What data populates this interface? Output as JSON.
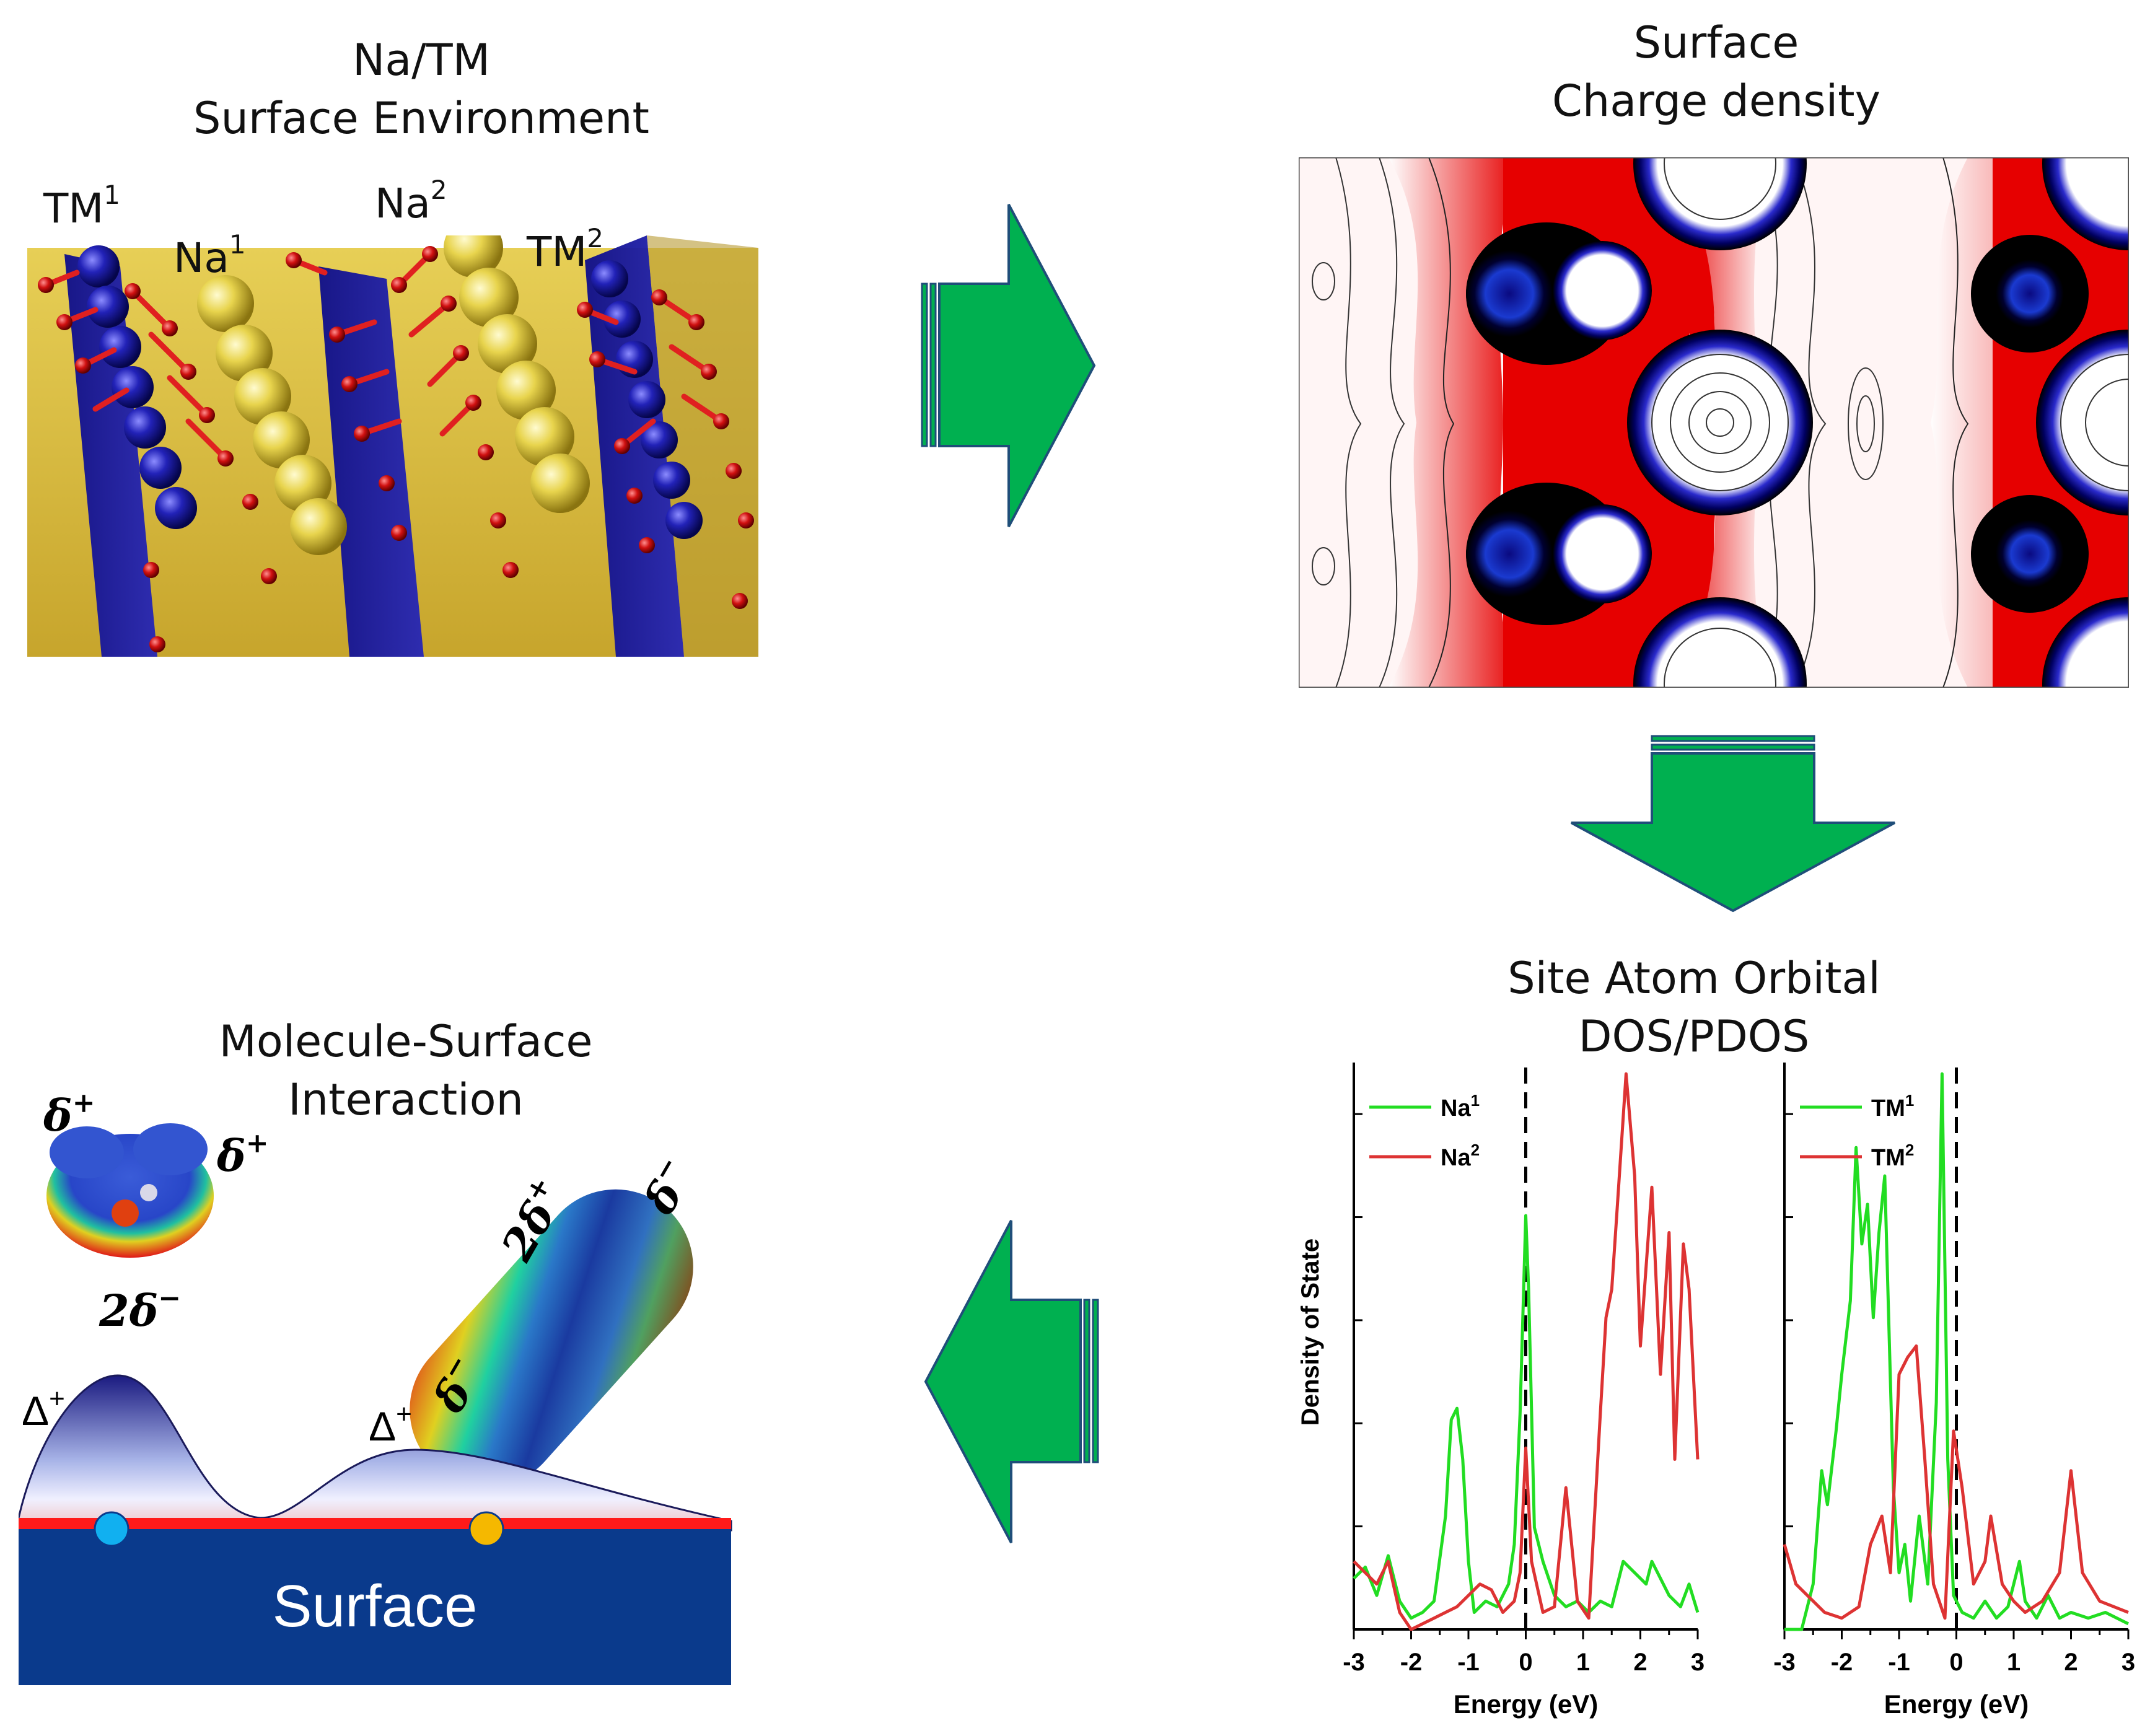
{
  "panels": {
    "surface_env": {
      "title_line1": "Na/TM",
      "title_line2": "Surface Environment"
    },
    "charge_density": {
      "title_line1": "Surface",
      "title_line2": "Charge density"
    },
    "dos": {
      "title_line1": "Site Atom Orbital",
      "title_line2": "DOS/PDOS"
    },
    "interaction": {
      "title_line1": "Molecule-Surface",
      "title_line2": "Interaction"
    }
  },
  "atom_labels": {
    "tm1_base": "TM",
    "tm1_sup": "1",
    "na1_base": "Na",
    "na1_sup": "1",
    "na2_base": "Na",
    "na2_sup": "2",
    "tm2_base": "TM",
    "tm2_sup": "2"
  },
  "interaction": {
    "delta_plus": "δ",
    "sup_plus": "+",
    "sup_minus": "−",
    "two_delta_minus": "2δ",
    "two_delta_plus": "2δ",
    "delta_minus": "δ",
    "cap_delta": "Δ",
    "surface_label": "Surface"
  },
  "colors": {
    "arrow_green": "#00b050",
    "arrow_outline": "#1f4e79",
    "na_line": "#22dd22",
    "tm_line": "#dd3333",
    "tm_atom": "#1a1aa6",
    "na_atom": "#e8d44d",
    "oxygen": "#d01010",
    "surface_blue": "#0a3a8c"
  },
  "chart_data": [
    {
      "type": "line",
      "title": "",
      "xlabel": "Energy (eV)",
      "ylabel": "Density of State",
      "xlim": [
        -3,
        3
      ],
      "ylim": [
        0,
        1
      ],
      "x_ticks": [
        "-3",
        "-2",
        "-1",
        "0",
        "1",
        "2",
        "3"
      ],
      "legend_position": "top-left",
      "fermi_line_x": 0,
      "series": [
        {
          "name": "Na",
          "name_sup": "1",
          "color": "#22dd22",
          "x": [
            -3,
            -2.8,
            -2.6,
            -2.4,
            -2.2,
            -2.0,
            -1.8,
            -1.6,
            -1.4,
            -1.3,
            -1.2,
            -1.1,
            -1.0,
            -0.9,
            -0.7,
            -0.5,
            -0.3,
            -0.2,
            -0.1,
            0.0,
            0.05,
            0.15,
            0.3,
            0.5,
            0.7,
            0.9,
            1.1,
            1.3,
            1.5,
            1.7,
            1.9,
            2.1,
            2.2,
            2.3,
            2.5,
            2.7,
            2.85,
            3.0
          ],
          "y": [
            0.09,
            0.11,
            0.06,
            0.13,
            0.05,
            0.02,
            0.03,
            0.05,
            0.2,
            0.37,
            0.39,
            0.3,
            0.12,
            0.03,
            0.05,
            0.04,
            0.08,
            0.15,
            0.38,
            0.73,
            0.6,
            0.18,
            0.12,
            0.06,
            0.04,
            0.05,
            0.03,
            0.05,
            0.04,
            0.12,
            0.1,
            0.08,
            0.12,
            0.1,
            0.06,
            0.04,
            0.08,
            0.03
          ]
        },
        {
          "name": "Na",
          "name_sup": "2",
          "color": "#dd3333",
          "x": [
            -3,
            -2.8,
            -2.6,
            -2.4,
            -2.2,
            -2.0,
            -1.8,
            -1.6,
            -1.4,
            -1.2,
            -1.0,
            -0.8,
            -0.6,
            -0.4,
            -0.2,
            -0.1,
            0.0,
            0.1,
            0.3,
            0.5,
            0.7,
            0.9,
            1.1,
            1.3,
            1.4,
            1.5,
            1.6,
            1.75,
            1.9,
            2.0,
            2.2,
            2.35,
            2.5,
            2.6,
            2.75,
            2.85,
            3.0
          ],
          "y": [
            0.12,
            0.1,
            0.08,
            0.12,
            0.03,
            0.0,
            0.01,
            0.02,
            0.03,
            0.04,
            0.06,
            0.08,
            0.07,
            0.03,
            0.05,
            0.1,
            0.32,
            0.12,
            0.03,
            0.04,
            0.25,
            0.05,
            0.02,
            0.38,
            0.55,
            0.6,
            0.75,
            0.98,
            0.8,
            0.5,
            0.78,
            0.45,
            0.7,
            0.3,
            0.68,
            0.6,
            0.3
          ]
        }
      ]
    },
    {
      "type": "line",
      "title": "",
      "xlabel": "Energy (eV)",
      "ylabel": "",
      "xlim": [
        -3,
        3
      ],
      "ylim": [
        0,
        1
      ],
      "x_ticks": [
        "-3",
        "-2",
        "-1",
        "0",
        "1",
        "2",
        "3"
      ],
      "legend_position": "top-left",
      "fermi_line_x": 0,
      "series": [
        {
          "name": "TM",
          "name_sup": "1",
          "color": "#22dd22",
          "x": [
            -3,
            -2.7,
            -2.5,
            -2.35,
            -2.25,
            -2.1,
            -2.0,
            -1.85,
            -1.75,
            -1.65,
            -1.55,
            -1.45,
            -1.35,
            -1.25,
            -1.1,
            -1.0,
            -0.9,
            -0.8,
            -0.65,
            -0.5,
            -0.35,
            -0.25,
            -0.15,
            -0.05,
            0.1,
            0.3,
            0.5,
            0.7,
            0.9,
            1.1,
            1.2,
            1.4,
            1.6,
            1.8,
            2.0,
            2.3,
            2.6,
            3.0
          ],
          "y": [
            0.0,
            0.0,
            0.08,
            0.28,
            0.22,
            0.35,
            0.45,
            0.58,
            0.85,
            0.68,
            0.75,
            0.55,
            0.7,
            0.8,
            0.25,
            0.1,
            0.15,
            0.05,
            0.2,
            0.08,
            0.4,
            0.98,
            0.3,
            0.06,
            0.03,
            0.02,
            0.05,
            0.02,
            0.04,
            0.12,
            0.05,
            0.02,
            0.06,
            0.02,
            0.03,
            0.02,
            0.03,
            0.01
          ]
        },
        {
          "name": "TM",
          "name_sup": "2",
          "color": "#dd3333",
          "x": [
            -3,
            -2.8,
            -2.6,
            -2.3,
            -2.0,
            -1.7,
            -1.5,
            -1.3,
            -1.15,
            -1.0,
            -0.85,
            -0.7,
            -0.55,
            -0.4,
            -0.2,
            -0.05,
            0.1,
            0.3,
            0.5,
            0.6,
            0.8,
            1.0,
            1.2,
            1.5,
            1.8,
            2.0,
            2.2,
            2.5,
            3.0
          ],
          "y": [
            0.15,
            0.08,
            0.06,
            0.03,
            0.02,
            0.04,
            0.15,
            0.2,
            0.1,
            0.45,
            0.48,
            0.5,
            0.3,
            0.08,
            0.02,
            0.35,
            0.25,
            0.08,
            0.12,
            0.2,
            0.08,
            0.05,
            0.03,
            0.05,
            0.1,
            0.28,
            0.1,
            0.05,
            0.03
          ]
        }
      ]
    }
  ]
}
